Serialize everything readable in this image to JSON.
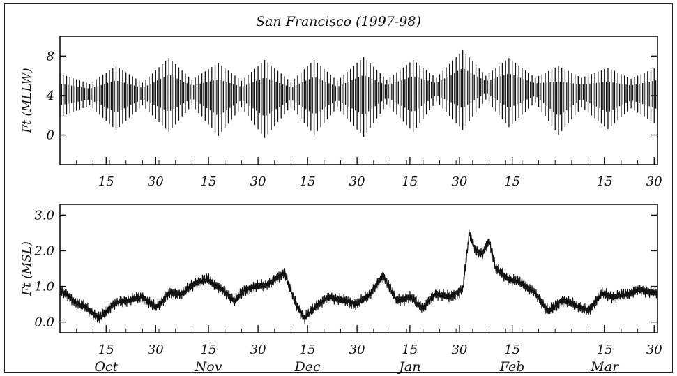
{
  "title": "San Francisco (1997-98)",
  "chart_data": [
    {
      "type": "line",
      "id": "top",
      "title": "San Francisco (1997-98)",
      "ylabel": "Ft (MLLW)",
      "ylim": [
        -3,
        10
      ],
      "yticks": [
        0,
        4,
        8
      ],
      "ytick_labels": [
        "0",
        "4",
        "8"
      ],
      "x_range": [
        "1997-10-01",
        "1998-03-31"
      ],
      "xtick_dates": [
        "1997-10-15",
        "1997-10-30",
        "1997-11-15",
        "1997-11-30",
        "1997-12-15",
        "1997-12-30",
        "1998-01-15",
        "1998-01-30",
        "1998-02-15",
        "1998-03-15",
        "1998-03-30"
      ],
      "xtick_labels": [
        "15",
        "30",
        "15",
        "30",
        "15",
        "30",
        "15",
        "30",
        "15",
        "15",
        "30"
      ],
      "series": [
        {
          "kind": "tidal envelope",
          "x": [
            "1997-10-01",
            "1997-10-10",
            "1997-10-18",
            "1997-10-26",
            "1997-11-03",
            "1997-11-10",
            "1997-11-18",
            "1997-11-25",
            "1997-12-02",
            "1997-12-10",
            "1997-12-17",
            "1997-12-24",
            "1998-01-01",
            "1998-01-08",
            "1998-01-16",
            "1998-01-23",
            "1998-01-31",
            "1998-02-07",
            "1998-02-14",
            "1998-02-22",
            "1998-03-01",
            "1998-03-08",
            "1998-03-16",
            "1998-03-23",
            "1998-03-31"
          ],
          "high": [
            6.2,
            5.2,
            7.0,
            5.3,
            7.8,
            5.6,
            7.3,
            5.5,
            7.6,
            5.4,
            7.6,
            5.5,
            7.9,
            5.6,
            7.6,
            5.8,
            8.6,
            6.0,
            7.8,
            5.8,
            7.0,
            5.8,
            6.8,
            5.7,
            6.9
          ],
          "low": [
            1.8,
            3.0,
            0.5,
            3.0,
            0.3,
            3.0,
            -0.1,
            2.8,
            -0.3,
            2.9,
            0.0,
            2.8,
            -0.2,
            3.1,
            0.3,
            3.4,
            0.5,
            3.6,
            0.8,
            3.3,
            0.0,
            2.8,
            0.6,
            2.7,
            1.0
          ]
        }
      ]
    },
    {
      "type": "line",
      "id": "bottom",
      "ylabel": "Ft (MSL)",
      "ylim": [
        -0.3,
        3.3
      ],
      "yticks": [
        0,
        1,
        2,
        3
      ],
      "ytick_labels": [
        "0.0",
        "1.0",
        "2.0",
        "3.0"
      ],
      "x_range": [
        "1997-10-01",
        "1998-03-31"
      ],
      "xtick_dates": [
        "1997-10-15",
        "1997-10-30",
        "1997-11-15",
        "1997-11-30",
        "1997-12-15",
        "1997-12-30",
        "1998-01-15",
        "1998-01-30",
        "1998-02-15",
        "1998-03-15",
        "1998-03-30"
      ],
      "xtick_labels": [
        "15",
        "30",
        "15",
        "30",
        "15",
        "30",
        "15",
        "30",
        "15",
        "15",
        "30"
      ],
      "months": [
        "Oct",
        "Nov",
        "Dec",
        "Jan",
        "Feb",
        "Mar"
      ],
      "month_dates": [
        "1997-10-15",
        "1997-11-15",
        "1997-12-15",
        "1998-01-15",
        "1998-02-15",
        "1998-03-15"
      ],
      "series": [
        {
          "kind": "residual",
          "x": [
            "1997-10-01",
            "1997-10-05",
            "1997-10-09",
            "1997-10-13",
            "1997-10-17",
            "1997-10-21",
            "1997-10-26",
            "1997-10-30",
            "1997-11-03",
            "1997-11-07",
            "1997-11-11",
            "1997-11-15",
            "1997-11-19",
            "1997-11-23",
            "1997-11-26",
            "1997-11-30",
            "1997-12-04",
            "1997-12-08",
            "1997-12-11",
            "1997-12-14",
            "1997-12-18",
            "1997-12-22",
            "1997-12-26",
            "1997-12-30",
            "1998-01-03",
            "1998-01-07",
            "1998-01-11",
            "1998-01-15",
            "1998-01-19",
            "1998-01-23",
            "1998-01-27",
            "1998-01-31",
            "1998-02-02",
            "1998-02-04",
            "1998-02-06",
            "1998-02-08",
            "1998-02-10",
            "1998-02-14",
            "1998-02-18",
            "1998-02-22",
            "1998-02-26",
            "1998-03-02",
            "1998-03-06",
            "1998-03-10",
            "1998-03-14",
            "1998-03-18",
            "1998-03-22",
            "1998-03-26",
            "1998-03-31"
          ],
          "y": [
            0.9,
            0.6,
            0.4,
            0.1,
            0.5,
            0.6,
            0.7,
            0.4,
            0.8,
            0.8,
            1.1,
            1.2,
            0.9,
            0.6,
            0.9,
            1.0,
            1.1,
            1.4,
            0.6,
            0.1,
            0.5,
            0.7,
            0.6,
            0.5,
            0.8,
            1.3,
            0.6,
            0.7,
            0.4,
            0.8,
            0.7,
            0.9,
            2.5,
            2.0,
            1.9,
            2.3,
            1.5,
            1.2,
            1.1,
            0.8,
            0.3,
            0.6,
            0.5,
            0.3,
            0.8,
            0.7,
            0.8,
            0.9,
            0.8
          ]
        }
      ]
    }
  ]
}
